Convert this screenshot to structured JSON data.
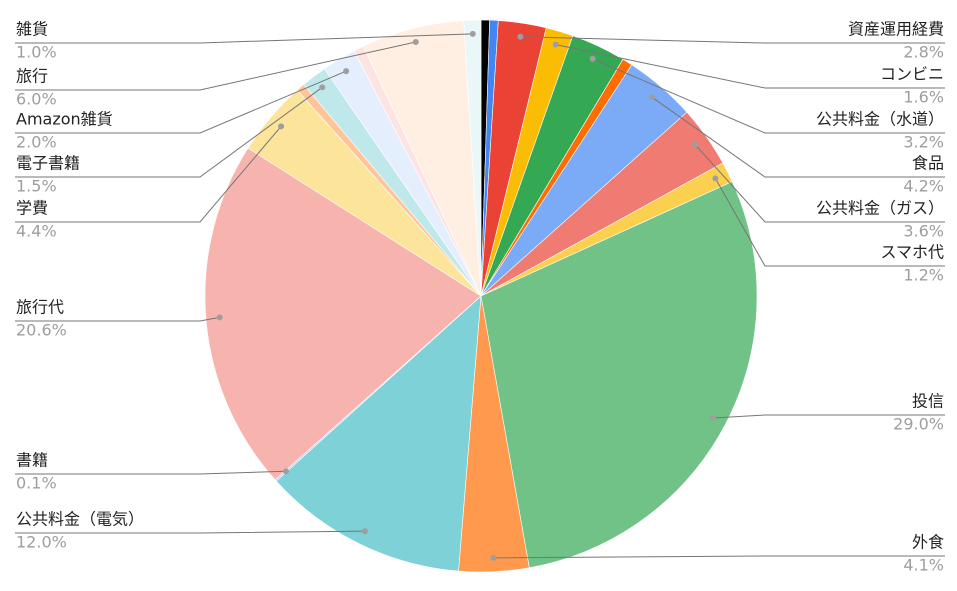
{
  "chart_data": {
    "type": "pie",
    "categories": [
      null,
      null,
      "資産運用経費",
      "コンビニ",
      "公共料金（水道）",
      null,
      "食品",
      "公共料金（ガス）",
      "スマホ代",
      "投信",
      "外食",
      "公共料金（電気）",
      "書籍",
      "旅行代",
      "学費",
      null,
      "電子書籍",
      "Amazon雑貨",
      null,
      "旅行",
      "雑貨"
    ],
    "values": [
      0.5,
      0.5,
      2.8,
      1.6,
      3.2,
      0.6,
      4.2,
      3.6,
      1.2,
      29.0,
      4.1,
      12.0,
      0.1,
      20.6,
      4.4,
      0.5,
      1.5,
      2.0,
      0.6,
      6.0,
      1.0
    ],
    "value_labels": [
      null,
      null,
      "2.8%",
      "1.6%",
      "3.2%",
      null,
      "4.2%",
      "3.6%",
      "1.2%",
      "29.0%",
      "4.1%",
      "12.0%",
      "0.1%",
      "20.6%",
      "4.4%",
      null,
      "1.5%",
      "2.0%",
      null,
      "6.0%",
      "1.0%"
    ],
    "colors": [
      "#000000",
      "#4285f4",
      "#ea4335",
      "#fbbc04",
      "#34a853",
      "#ff6d01",
      "#7baaf7",
      "#f07b72",
      "#fcd04f",
      "#71c287",
      "#ff994d",
      "#7ed1d7",
      "#b3cefb",
      "#f7b4ae",
      "#fde49b",
      "#ffc599",
      "#bfe8eb",
      "#e5eefd",
      "#fde3e1",
      "#ffefe2",
      "#eaf7f8"
    ]
  }
}
